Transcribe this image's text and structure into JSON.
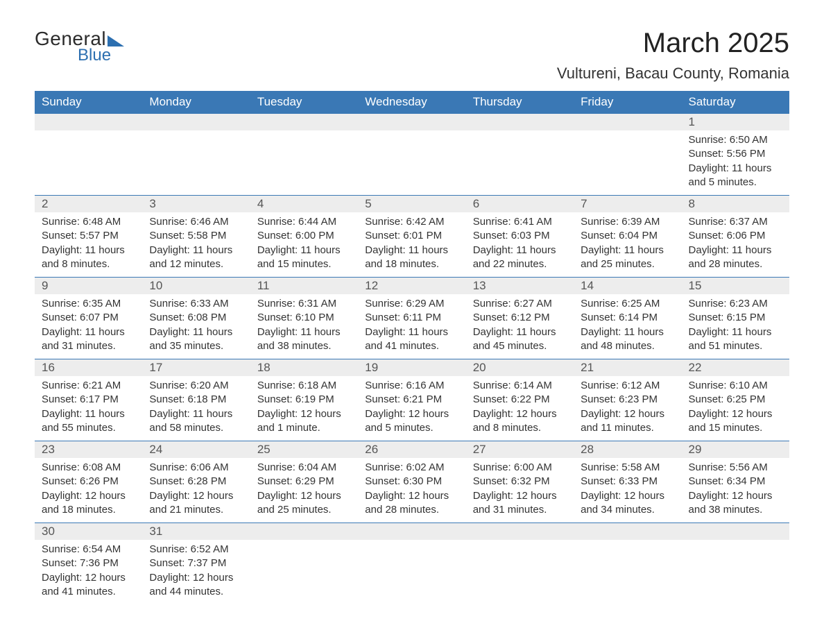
{
  "brand": {
    "word1": "General",
    "word2": "Blue",
    "accent_color": "#2c6fb0"
  },
  "title": "March 2025",
  "location": "Vultureni, Bacau County, Romania",
  "colors": {
    "header_bg": "#3a78b5",
    "header_text": "#ffffff",
    "daynum_bg": "#ededed",
    "row_border": "#3a78b5",
    "text": "#333333",
    "page_bg": "#ffffff"
  },
  "day_headers": [
    "Sunday",
    "Monday",
    "Tuesday",
    "Wednesday",
    "Thursday",
    "Friday",
    "Saturday"
  ],
  "weeks": [
    {
      "nums": [
        "",
        "",
        "",
        "",
        "",
        "",
        "1"
      ],
      "cells": [
        "",
        "",
        "",
        "",
        "",
        "",
        "Sunrise: 6:50 AM\nSunset: 5:56 PM\nDaylight: 11 hours and 5 minutes."
      ]
    },
    {
      "nums": [
        "2",
        "3",
        "4",
        "5",
        "6",
        "7",
        "8"
      ],
      "cells": [
        "Sunrise: 6:48 AM\nSunset: 5:57 PM\nDaylight: 11 hours and 8 minutes.",
        "Sunrise: 6:46 AM\nSunset: 5:58 PM\nDaylight: 11 hours and 12 minutes.",
        "Sunrise: 6:44 AM\nSunset: 6:00 PM\nDaylight: 11 hours and 15 minutes.",
        "Sunrise: 6:42 AM\nSunset: 6:01 PM\nDaylight: 11 hours and 18 minutes.",
        "Sunrise: 6:41 AM\nSunset: 6:03 PM\nDaylight: 11 hours and 22 minutes.",
        "Sunrise: 6:39 AM\nSunset: 6:04 PM\nDaylight: 11 hours and 25 minutes.",
        "Sunrise: 6:37 AM\nSunset: 6:06 PM\nDaylight: 11 hours and 28 minutes."
      ]
    },
    {
      "nums": [
        "9",
        "10",
        "11",
        "12",
        "13",
        "14",
        "15"
      ],
      "cells": [
        "Sunrise: 6:35 AM\nSunset: 6:07 PM\nDaylight: 11 hours and 31 minutes.",
        "Sunrise: 6:33 AM\nSunset: 6:08 PM\nDaylight: 11 hours and 35 minutes.",
        "Sunrise: 6:31 AM\nSunset: 6:10 PM\nDaylight: 11 hours and 38 minutes.",
        "Sunrise: 6:29 AM\nSunset: 6:11 PM\nDaylight: 11 hours and 41 minutes.",
        "Sunrise: 6:27 AM\nSunset: 6:12 PM\nDaylight: 11 hours and 45 minutes.",
        "Sunrise: 6:25 AM\nSunset: 6:14 PM\nDaylight: 11 hours and 48 minutes.",
        "Sunrise: 6:23 AM\nSunset: 6:15 PM\nDaylight: 11 hours and 51 minutes."
      ]
    },
    {
      "nums": [
        "16",
        "17",
        "18",
        "19",
        "20",
        "21",
        "22"
      ],
      "cells": [
        "Sunrise: 6:21 AM\nSunset: 6:17 PM\nDaylight: 11 hours and 55 minutes.",
        "Sunrise: 6:20 AM\nSunset: 6:18 PM\nDaylight: 11 hours and 58 minutes.",
        "Sunrise: 6:18 AM\nSunset: 6:19 PM\nDaylight: 12 hours and 1 minute.",
        "Sunrise: 6:16 AM\nSunset: 6:21 PM\nDaylight: 12 hours and 5 minutes.",
        "Sunrise: 6:14 AM\nSunset: 6:22 PM\nDaylight: 12 hours and 8 minutes.",
        "Sunrise: 6:12 AM\nSunset: 6:23 PM\nDaylight: 12 hours and 11 minutes.",
        "Sunrise: 6:10 AM\nSunset: 6:25 PM\nDaylight: 12 hours and 15 minutes."
      ]
    },
    {
      "nums": [
        "23",
        "24",
        "25",
        "26",
        "27",
        "28",
        "29"
      ],
      "cells": [
        "Sunrise: 6:08 AM\nSunset: 6:26 PM\nDaylight: 12 hours and 18 minutes.",
        "Sunrise: 6:06 AM\nSunset: 6:28 PM\nDaylight: 12 hours and 21 minutes.",
        "Sunrise: 6:04 AM\nSunset: 6:29 PM\nDaylight: 12 hours and 25 minutes.",
        "Sunrise: 6:02 AM\nSunset: 6:30 PM\nDaylight: 12 hours and 28 minutes.",
        "Sunrise: 6:00 AM\nSunset: 6:32 PM\nDaylight: 12 hours and 31 minutes.",
        "Sunrise: 5:58 AM\nSunset: 6:33 PM\nDaylight: 12 hours and 34 minutes.",
        "Sunrise: 5:56 AM\nSunset: 6:34 PM\nDaylight: 12 hours and 38 minutes."
      ]
    },
    {
      "nums": [
        "30",
        "31",
        "",
        "",
        "",
        "",
        ""
      ],
      "cells": [
        "Sunrise: 6:54 AM\nSunset: 7:36 PM\nDaylight: 12 hours and 41 minutes.",
        "Sunrise: 6:52 AM\nSunset: 7:37 PM\nDaylight: 12 hours and 44 minutes.",
        "",
        "",
        "",
        "",
        ""
      ]
    }
  ]
}
